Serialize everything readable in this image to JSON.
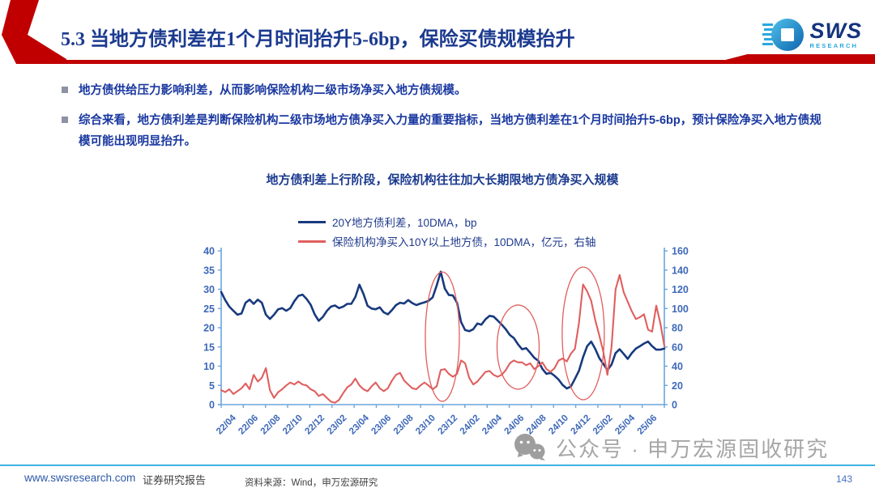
{
  "header": {
    "title": "5.3 当地方债利差在1个月时间抬升5-6bp，保险买债规模抬升",
    "title_color": "#1b3a8f",
    "accent_red": "#c00000",
    "logo": {
      "text": "SWS",
      "subtext": "RESEARCH",
      "text_color": "#14337d",
      "icon_color": "#29a8df"
    }
  },
  "bullets": [
    "地方债供给压力影响利差，从而影响保险机构二级市场净买入地方债规模。",
    "综合来看，地方债利差是判断保险机构二级市场地方债净买入力量的重要指标，当地方债利差在1个月时间抬升5-6bp，预计保险净买入地方债规模可能出现明显抬升。"
  ],
  "chart_data": {
    "type": "line",
    "title": "地方债利差上行阶段，保险机构往往加大长期限地方债净买入规模",
    "x_tick_labels": [
      "22/04",
      "22/06",
      "22/08",
      "22/10",
      "22/12",
      "23/02",
      "23/04",
      "23/06",
      "23/08",
      "23/10",
      "23/12",
      "24/02",
      "24/04",
      "24/06",
      "24/08",
      "24/10",
      "24/12",
      "25/02",
      "25/04",
      "25/06"
    ],
    "left_axis": {
      "min": 0,
      "max": 40,
      "ticks": [
        0,
        5,
        10,
        15,
        20,
        25,
        30,
        35,
        40
      ]
    },
    "right_axis": {
      "min": 0,
      "max": 160,
      "ticks": [
        0,
        20,
        40,
        60,
        80,
        100,
        120,
        140,
        160
      ]
    },
    "axis_color": "#6aa5dc",
    "tick_label_color": "#3e68b8",
    "grid": false,
    "legend_position": "top",
    "series": [
      {
        "name": "20Y地方债利差，10DMA，bp",
        "color": "#183a7d",
        "axis": "left",
        "values": [
          29.3,
          27.2,
          25.5,
          24.4,
          23.4,
          23.7,
          26.5,
          27.3,
          26.2,
          27.3,
          26.5,
          23.4,
          22.3,
          23.4,
          24.8,
          25.1,
          24.4,
          25.1,
          26.9,
          28.3,
          28.6,
          27.5,
          26.0,
          23.5,
          21.8,
          22.8,
          24.4,
          25.5,
          25.8,
          25.1,
          25.5,
          26.2,
          26.2,
          28.0,
          31.2,
          28.8,
          25.7,
          25.0,
          24.8,
          25.3,
          24.0,
          23.5,
          24.6,
          25.9,
          26.5,
          26.3,
          27.2,
          26.4,
          25.9,
          26.3,
          26.6,
          27.0,
          27.9,
          31.0,
          34.6,
          30.2,
          28.5,
          28.4,
          26.5,
          21.5,
          19.4,
          19.1,
          19.6,
          21.1,
          20.8,
          22.2,
          23.1,
          22.9,
          21.9,
          20.8,
          19.6,
          18.1,
          17.3,
          15.7,
          14.4,
          14.7,
          13.5,
          12.2,
          11.4,
          9.3,
          8.0,
          8.3,
          7.5,
          6.5,
          5.1,
          4.2,
          4.7,
          6.7,
          8.8,
          12.3,
          15.2,
          16.4,
          14.5,
          12.1,
          10.6,
          9.0,
          10.4,
          13.4,
          14.4,
          13.2,
          11.9,
          13.4,
          14.6,
          15.2,
          15.9,
          16.4,
          15.2,
          14.3,
          14.3,
          14.6
        ]
      },
      {
        "name": "保险机构净买入10Y以上地方债，10DMA，亿元，右轴",
        "color": "#e05f5f",
        "axis": "right",
        "values": [
          15,
          13,
          16,
          11,
          14,
          17,
          22,
          16,
          31,
          24,
          28,
          38,
          15,
          7,
          13,
          16,
          20,
          23,
          21,
          24,
          21,
          20,
          16,
          14,
          9,
          11,
          7,
          3,
          2,
          5,
          12,
          18,
          21,
          27,
          20,
          16,
          14,
          19,
          23,
          17,
          14,
          17,
          25,
          31,
          33,
          25,
          21,
          17,
          16,
          20,
          23,
          20,
          16,
          19,
          36,
          37,
          32,
          29,
          32,
          46,
          43,
          28,
          21,
          24,
          29,
          34,
          35,
          31,
          29,
          31,
          36,
          43,
          46,
          44,
          44,
          41,
          43,
          37,
          40,
          44,
          37,
          34,
          38,
          46,
          48,
          45,
          53,
          58,
          85,
          125,
          118,
          108,
          88,
          72,
          55,
          31,
          60,
          120,
          135,
          117,
          107,
          97,
          89,
          91,
          94,
          78,
          76,
          103,
          85,
          61
        ]
      }
    ],
    "annotations": [
      {
        "shape": "ellipse",
        "cx": 0.499,
        "cy": 0.558,
        "rx": 21,
        "ry": 80,
        "color": "#e05f5f"
      },
      {
        "shape": "ellipse",
        "cx": 0.67,
        "cy": 0.626,
        "rx": 26,
        "ry": 52,
        "color": "#e05f5f"
      },
      {
        "shape": "ellipse",
        "cx": 0.817,
        "cy": 0.537,
        "rx": 26,
        "ry": 82,
        "color": "#e05f5f"
      }
    ]
  },
  "watermark": {
    "text": "公众号 · 申万宏源固收研究",
    "color": "#a6a6a6"
  },
  "footer": {
    "site": "www.swsresearch.com",
    "report_type": "证券研究报告",
    "source": "资料来源：Wind，申万宏源研究",
    "page": "143",
    "divider_color": "#3db3e2"
  }
}
